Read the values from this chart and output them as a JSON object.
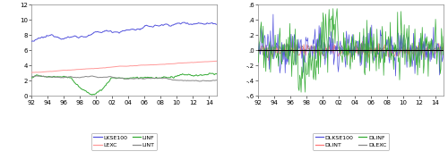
{
  "xtick_vals": [
    1992,
    1994,
    1996,
    1998,
    2000,
    2002,
    2004,
    2006,
    2008,
    2010,
    2012,
    2014
  ],
  "xtick_labels": [
    "92",
    "94",
    "96",
    "98",
    "00",
    "02",
    "04",
    "06",
    "08",
    "10",
    "12",
    "14"
  ],
  "ylim_left": [
    0,
    12
  ],
  "yticks_left": [
    0,
    2,
    4,
    6,
    8,
    10,
    12
  ],
  "ylim_right": [
    -0.6,
    0.6
  ],
  "yticks_right": [
    -0.6,
    -0.4,
    -0.2,
    0.0,
    0.2,
    0.4,
    0.6
  ],
  "ytick_labels_right": [
    "-.6",
    "-.4",
    "-.2",
    ".0",
    ".2",
    ".4",
    ".6"
  ],
  "legend_left_row1": [
    "LKSE100",
    "LEXC"
  ],
  "legend_left_row2": [
    "LINF",
    "LINT"
  ],
  "legend_right_row1": [
    "DLKSE100",
    "DLINT"
  ],
  "legend_right_row2": [
    "DLINF",
    "DLEXC"
  ],
  "colors_left": [
    "#5555dd",
    "#ff9999",
    "#33aa33",
    "#888888"
  ],
  "colors_right": [
    "#5555dd",
    "#ff7777",
    "#33aa33",
    "#888888"
  ],
  "figsize": [
    5.0,
    1.79
  ],
  "dpi": 100,
  "bg_color": "#ffffff",
  "plot_bg": "#ffffff"
}
